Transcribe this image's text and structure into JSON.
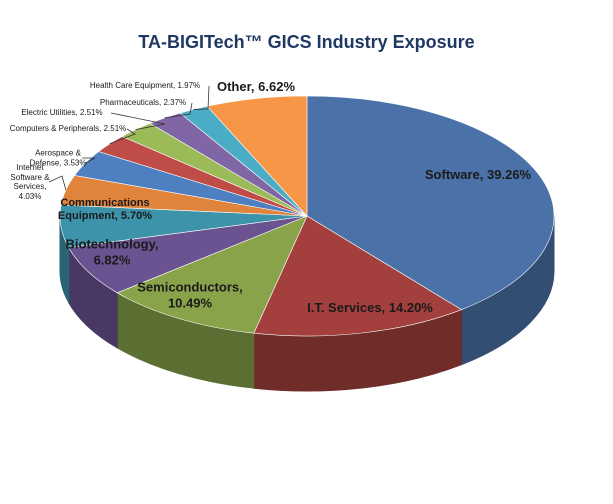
{
  "chart_data": {
    "type": "pie3d",
    "title": "TA-BIGITech™ GICS Industry Exposure",
    "values": [
      39.26,
      14.2,
      10.49,
      6.82,
      5.7,
      4.03,
      3.53,
      2.51,
      2.51,
      2.37,
      1.97,
      6.62
    ],
    "value_labels": [
      "Software, 39.26%",
      "I.T. Services, 14.20%",
      "Semiconductors, 10.49%",
      "Biotechnology, 6.82%",
      "Communications Equipment, 5.70%",
      "Internet Software & Services, 4.03%",
      "Aerospace & Defense, 3.53%",
      "Computers & Peripherals, 2.51%",
      "Electric Utilities, 2.51%",
      "Pharmaceuticals, 2.37%",
      "Health Care Equipment, 1.97%",
      "Other, 6.62%"
    ],
    "colors": [
      "#4a72a8",
      "#a3403d",
      "#88a34a",
      "#6b5391",
      "#3c93aa",
      "#e0843c",
      "#4e7fc0",
      "#c04c48",
      "#9bbb59",
      "#8066a4",
      "#4bacc6",
      "#f79646"
    ]
  }
}
